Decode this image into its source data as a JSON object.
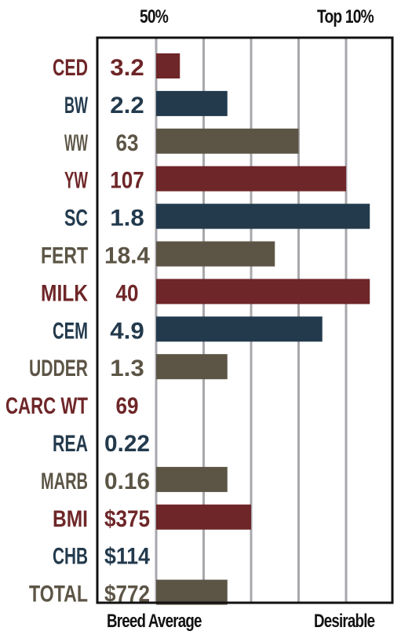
{
  "header": {
    "left_label": "50%",
    "right_label": "Top 10%"
  },
  "footer": {
    "left_label": "Breed Average",
    "right_label": "Desirable"
  },
  "colors": {
    "maroon": "#6e2628",
    "navy": "#233a4d",
    "olive": "#5c5546",
    "grid": "#a8a8ac",
    "frame": "#111111"
  },
  "chart_data": {
    "type": "bar",
    "orientation": "horizontal",
    "value_unit": "grid divisions from 50% (breed average) toward Top 10% (desirable)",
    "xlim": [
      0,
      4.5
    ],
    "grid": true,
    "rows": [
      {
        "label": "CED",
        "value_text": "3.2",
        "bar": 0.5,
        "color": "maroon"
      },
      {
        "label": "BW",
        "value_text": "2.2",
        "bar": 1.5,
        "color": "navy"
      },
      {
        "label": "WW",
        "value_text": "63",
        "bar": 3.0,
        "color": "olive"
      },
      {
        "label": "YW",
        "value_text": "107",
        "bar": 4.0,
        "color": "maroon"
      },
      {
        "label": "SC",
        "value_text": "1.8",
        "bar": 4.5,
        "color": "navy"
      },
      {
        "label": "FERT",
        "value_text": "18.4",
        "bar": 2.5,
        "color": "olive"
      },
      {
        "label": "MILK",
        "value_text": "40",
        "bar": 4.5,
        "color": "maroon"
      },
      {
        "label": "CEM",
        "value_text": "4.9",
        "bar": 3.5,
        "color": "navy"
      },
      {
        "label": "UDDER",
        "value_text": "1.3",
        "bar": 1.5,
        "color": "olive"
      },
      {
        "label": "CARC WT",
        "value_text": "69",
        "bar": 0,
        "color": "maroon"
      },
      {
        "label": "REA",
        "value_text": "0.22",
        "bar": 0,
        "color": "navy"
      },
      {
        "label": "MARB",
        "value_text": "0.16",
        "bar": 1.5,
        "color": "olive"
      },
      {
        "label": "BMI",
        "value_text": "$375",
        "bar": 2.0,
        "color": "maroon"
      },
      {
        "label": "CHB",
        "value_text": "$114",
        "bar": 0,
        "color": "navy"
      },
      {
        "label": "TOTAL",
        "value_text": "$772",
        "bar": 1.5,
        "color": "olive"
      }
    ]
  }
}
